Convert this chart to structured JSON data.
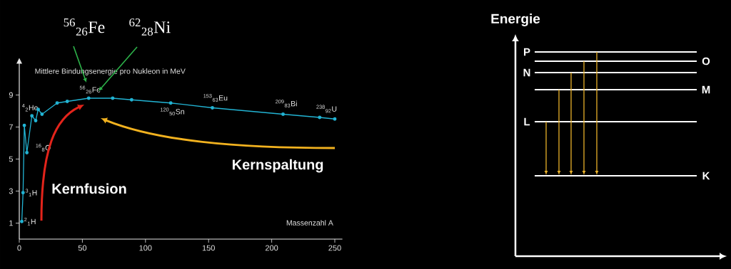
{
  "chart_data": [
    {
      "type": "line",
      "title": "Mittlere Bindungsenergie pro Nukleon in MeV",
      "xlabel": "Massenzahl A",
      "x": [
        2,
        3,
        4,
        6,
        10,
        13,
        15,
        18,
        30,
        38,
        55,
        74,
        89,
        120,
        153,
        209,
        238,
        250
      ],
      "values": [
        1.1,
        2.9,
        7.1,
        5.4,
        7.7,
        7.4,
        8.1,
        7.8,
        8.5,
        8.6,
        8.8,
        8.8,
        8.7,
        8.5,
        8.2,
        7.8,
        7.6,
        7.5
      ],
      "color": "#22b4d4",
      "marker": "circle",
      "xlim": [
        0,
        256
      ],
      "ylim": [
        0,
        11
      ],
      "xticks": [
        0,
        50,
        100,
        150,
        200,
        250
      ],
      "yticks": [
        1,
        3,
        5,
        7,
        9
      ],
      "annotations": [
        {
          "text": "$^{2}$$_{1}$H",
          "x": 2,
          "y": 1.1
        },
        {
          "text": "$^{3}$$_{1}$H",
          "x": 3,
          "y": 2.9
        },
        {
          "text": "$^{4}$$_{2}$He",
          "x": 4,
          "y": 7.1
        },
        {
          "text": "$^{16}$$_{8}$O",
          "x": 6,
          "y": 5.4
        },
        {
          "text": "$^{56}$$_{26}$Fe",
          "x": 55,
          "y": 8.8
        },
        {
          "text": "$^{120}$$_{50}$Sn",
          "x": 120,
          "y": 8.5
        },
        {
          "text": "$^{153}$$_{63}$Eu",
          "x": 153,
          "y": 8.2
        },
        {
          "text": "$^{209}$$_{83}$Bi",
          "x": 209,
          "y": 7.8
        },
        {
          "text": "$^{238}$$_{92}$U",
          "x": 238,
          "y": 7.6
        },
        "$^{56}$$_{26}$Fe",
        "$^{62}$$_{28}$Ni",
        "Kernfusion",
        "Kernspaltung"
      ]
    },
    {
      "type": "other",
      "title": "Energie",
      "annotations": [
        "P",
        "O",
        "N",
        "M",
        "L",
        "K"
      ]
    }
  ]
}
